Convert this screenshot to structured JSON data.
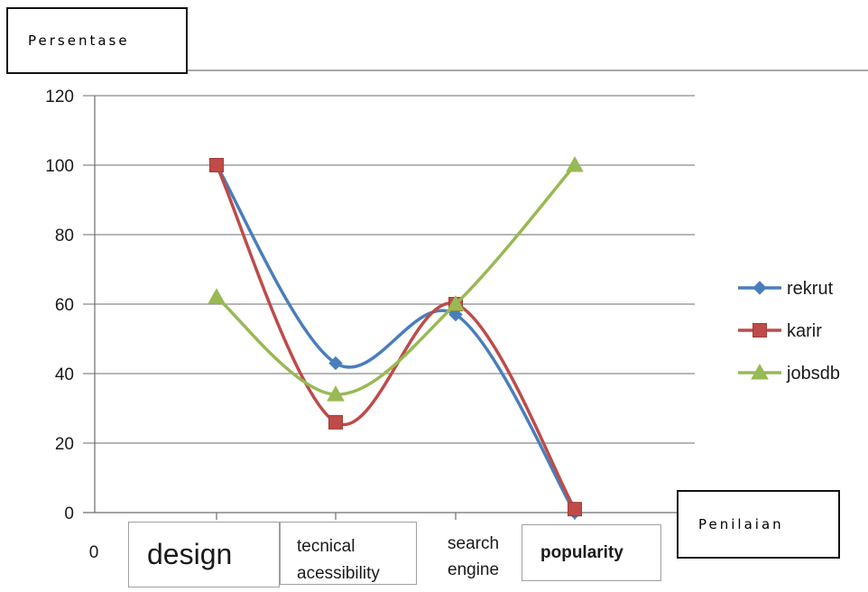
{
  "chart_data": {
    "type": "line",
    "ylabel": "Persentase",
    "xlabel": "Penilaian",
    "x_origin_label": "0",
    "categories": [
      "design",
      "tecnical acessibility",
      "search engine",
      "popularity"
    ],
    "category_lines": [
      [
        "design"
      ],
      [
        "tecnical",
        "acessibility"
      ],
      [
        "search",
        "engine"
      ],
      [
        "popularity"
      ]
    ],
    "ylim": [
      0,
      120
    ],
    "yticks": [
      0,
      20,
      40,
      60,
      80,
      100,
      120
    ],
    "grid": true,
    "smooth": true,
    "legend_position": "right",
    "series": [
      {
        "name": "rekrut",
        "color": "#4a7ebb",
        "marker": "diamond",
        "values": [
          100,
          43,
          57,
          0
        ]
      },
      {
        "name": "karir",
        "color": "#be4b48",
        "marker": "square",
        "values": [
          100,
          26,
          60,
          1
        ]
      },
      {
        "name": "jobsdb",
        "color": "#98b954",
        "marker": "triangle",
        "values": [
          62,
          34,
          60,
          100
        ]
      }
    ]
  }
}
